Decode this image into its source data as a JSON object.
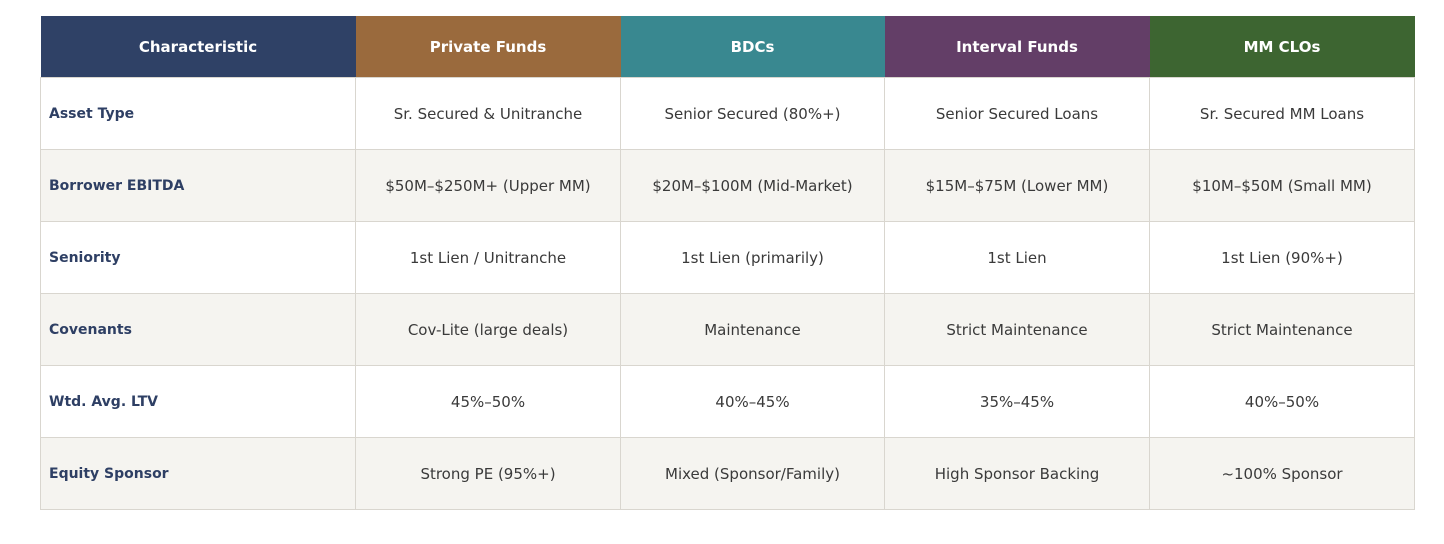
{
  "table": {
    "headers": [
      {
        "label": "Characteristic",
        "color": "#2f4166"
      },
      {
        "label": "Private Funds",
        "color": "#9a6a3d"
      },
      {
        "label": "BDCs",
        "color": "#398890"
      },
      {
        "label": "Interval Funds",
        "color": "#633e67"
      },
      {
        "label": "MM CLOs",
        "color": "#3d6531"
      }
    ],
    "rows": [
      {
        "label": "Asset Type",
        "cells": [
          "Sr. Secured & Unitranche",
          "Senior Secured (80%+)",
          "Senior Secured Loans",
          "Sr. Secured MM Loans"
        ]
      },
      {
        "label": "Borrower EBITDA",
        "cells": [
          "$50M–$250M+ (Upper MM)",
          "$20M–$100M (Mid-Market)",
          "$15M–$75M (Lower MM)",
          "$10M–$50M (Small MM)"
        ]
      },
      {
        "label": "Seniority",
        "cells": [
          "1st Lien / Unitranche",
          "1st Lien (primarily)",
          "1st Lien",
          "1st Lien (90%+)"
        ]
      },
      {
        "label": "Covenants",
        "cells": [
          "Cov-Lite (large deals)",
          "Maintenance",
          "Strict Maintenance",
          "Strict Maintenance"
        ]
      },
      {
        "label": "Wtd. Avg. LTV",
        "cells": [
          "45%–50%",
          "40%–45%",
          "35%–45%",
          "40%–50%"
        ]
      },
      {
        "label": "Equity Sponsor",
        "cells": [
          "Strong PE (95%+)",
          "Mixed (Sponsor/Family)",
          "High Sponsor Backing",
          "~100% Sponsor"
        ]
      }
    ]
  }
}
